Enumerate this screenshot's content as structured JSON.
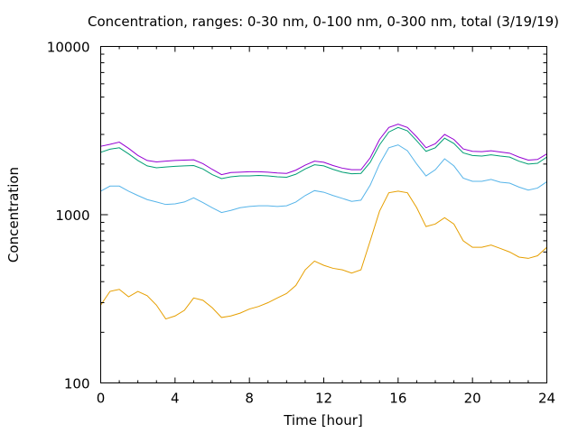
{
  "chart_data": {
    "type": "line",
    "title": "Concentration, ranges: 0-30 nm, 0-100 nm, 0-300 nm, total (3/19/19)",
    "xlabel": "Time [hour]",
    "ylabel": "Concentration",
    "xlim": [
      0,
      24
    ],
    "ylim": [
      100,
      10000
    ],
    "yscale": "log",
    "grid": false,
    "x_ticks": [
      0,
      4,
      8,
      12,
      16,
      20,
      24
    ],
    "x_tick_labels": [
      "0",
      "4",
      "8",
      "12",
      "16",
      "20",
      "24"
    ],
    "y_ticks": [
      100,
      1000,
      10000
    ],
    "y_tick_labels": [
      "100",
      "1000",
      "10000"
    ],
    "x": [
      0,
      0.5,
      1,
      1.5,
      2,
      2.5,
      3,
      3.5,
      4,
      4.5,
      5,
      5.5,
      6,
      6.5,
      7,
      7.5,
      8,
      8.5,
      9,
      9.5,
      10,
      10.5,
      11,
      11.5,
      12,
      12.5,
      13,
      13.5,
      14,
      14.5,
      15,
      15.5,
      16,
      16.5,
      17,
      17.5,
      18,
      18.5,
      19,
      19.5,
      20,
      20.5,
      21,
      21.5,
      22,
      22.5,
      23,
      23.5,
      24
    ],
    "series": [
      {
        "color": "#e69f00",
        "values": [
          290,
          350,
          360,
          325,
          350,
          330,
          290,
          240,
          250,
          270,
          320,
          310,
          280,
          245,
          250,
          260,
          275,
          285,
          300,
          320,
          340,
          380,
          470,
          530,
          500,
          480,
          470,
          450,
          470,
          700,
          1050,
          1350,
          1380,
          1350,
          1100,
          850,
          880,
          960,
          880,
          700,
          640,
          640,
          660,
          630,
          600,
          560,
          550,
          570,
          640
        ]
      },
      {
        "color": "#56b4e9",
        "values": [
          1380,
          1480,
          1480,
          1380,
          1300,
          1230,
          1190,
          1150,
          1160,
          1190,
          1260,
          1180,
          1100,
          1030,
          1060,
          1100,
          1120,
          1130,
          1130,
          1120,
          1130,
          1190,
          1300,
          1390,
          1360,
          1300,
          1250,
          1200,
          1220,
          1500,
          2000,
          2500,
          2600,
          2400,
          2000,
          1700,
          1850,
          2150,
          1950,
          1650,
          1580,
          1580,
          1620,
          1560,
          1540,
          1460,
          1400,
          1440,
          1570
        ]
      },
      {
        "color": "#009e73",
        "values": [
          2350,
          2450,
          2500,
          2300,
          2100,
          1950,
          1900,
          1920,
          1940,
          1950,
          1960,
          1870,
          1730,
          1640,
          1680,
          1700,
          1700,
          1710,
          1700,
          1680,
          1670,
          1740,
          1870,
          1980,
          1950,
          1860,
          1790,
          1750,
          1760,
          2050,
          2600,
          3100,
          3300,
          3150,
          2750,
          2380,
          2500,
          2850,
          2650,
          2330,
          2250,
          2230,
          2270,
          2230,
          2200,
          2080,
          2000,
          2020,
          2200
        ]
      },
      {
        "color": "#9400d3",
        "values": [
          2550,
          2620,
          2700,
          2480,
          2250,
          2100,
          2060,
          2080,
          2100,
          2110,
          2120,
          2010,
          1860,
          1730,
          1780,
          1790,
          1800,
          1800,
          1790,
          1770,
          1760,
          1840,
          1970,
          2080,
          2050,
          1960,
          1890,
          1850,
          1850,
          2180,
          2800,
          3300,
          3450,
          3300,
          2900,
          2500,
          2640,
          3000,
          2800,
          2460,
          2380,
          2370,
          2400,
          2360,
          2320,
          2200,
          2110,
          2130,
          2300
        ]
      }
    ]
  }
}
